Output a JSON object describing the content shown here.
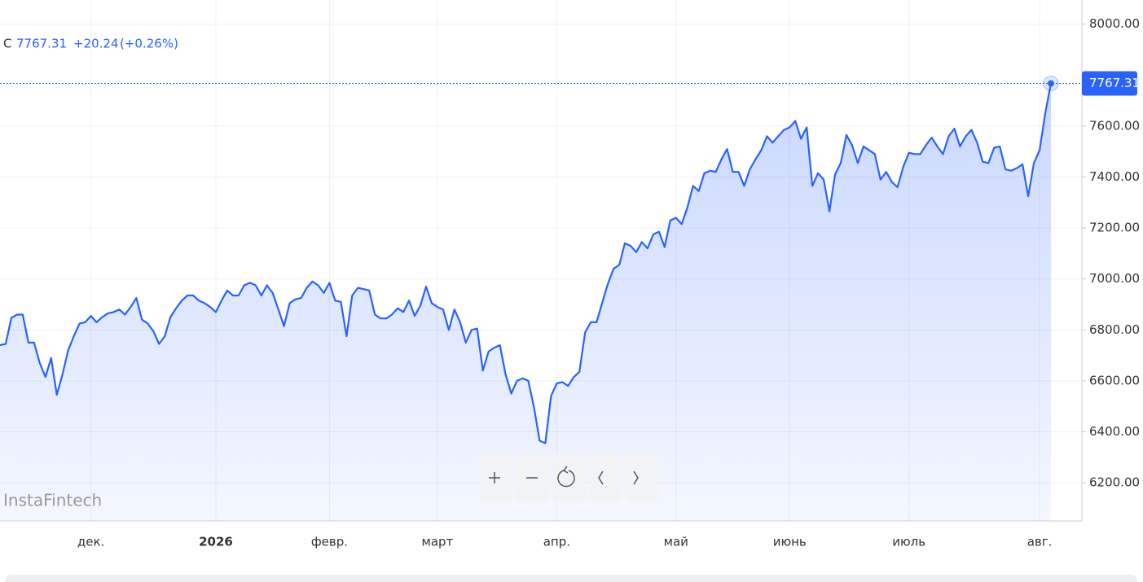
{
  "chart_data": {
    "type": "area",
    "header": {
      "symbol": "C",
      "change": "+20.24",
      "change_pct": "(+0.26%)"
    },
    "watermark": "InstaFintech",
    "color": "#2962ff",
    "categories": [
      null,
      null,
      null,
      null,
      null,
      null,
      null,
      null,
      null,
      null,
      null,
      null,
      null,
      null,
      null,
      null,
      "дек.",
      null,
      null,
      null,
      null,
      null,
      null,
      null,
      null,
      null,
      null,
      null,
      null,
      null,
      null,
      null,
      null,
      null,
      null,
      null,
      null,
      null,
      "2026",
      null,
      null,
      null,
      null,
      null,
      null,
      null,
      null,
      null,
      null,
      null,
      null,
      null,
      null,
      null,
      null,
      null,
      null,
      null,
      "февр.",
      null,
      null,
      null,
      null,
      null,
      null,
      null,
      null,
      null,
      null,
      null,
      null,
      null,
      null,
      null,
      null,
      null,
      null,
      "март",
      null,
      null,
      null,
      null,
      null,
      null,
      null,
      null,
      null,
      null,
      null,
      null,
      null,
      null,
      null,
      null,
      null,
      null,
      null,
      null,
      "апр.",
      null,
      null,
      null,
      null,
      null,
      null,
      null,
      null,
      null,
      null,
      null,
      null,
      null,
      null,
      null,
      null,
      null,
      null,
      null,
      null,
      "май",
      null,
      null,
      null,
      null,
      null,
      null,
      null,
      null,
      null,
      null,
      null,
      null,
      null,
      null,
      null,
      null,
      null,
      null,
      null,
      "июнь",
      null,
      null,
      null,
      null,
      null,
      null,
      null,
      null,
      null,
      null,
      null,
      null,
      null,
      null,
      null,
      null,
      null,
      null,
      null,
      null,
      "июль",
      null,
      null,
      null,
      null,
      null,
      null,
      null,
      null,
      null,
      null,
      null,
      null,
      null,
      null,
      null,
      null,
      null,
      null,
      null,
      null,
      null,
      null,
      "авг.",
      null,
      null
    ],
    "values": [
      6740,
      6745,
      6847,
      6860,
      6860,
      6750,
      6750,
      6670,
      6615,
      6690,
      6545,
      6625,
      6720,
      6775,
      6825,
      6830,
      6855,
      6830,
      6850,
      6865,
      6870,
      6880,
      6860,
      6890,
      6925,
      6840,
      6825,
      6795,
      6745,
      6775,
      6850,
      6885,
      6915,
      6935,
      6935,
      6915,
      6905,
      6890,
      6870,
      6915,
      6955,
      6935,
      6935,
      6975,
      6985,
      6975,
      6935,
      6975,
      6945,
      6880,
      6815,
      6905,
      6920,
      6925,
      6965,
      6990,
      6975,
      6945,
      6985,
      6915,
      6910,
      6775,
      6935,
      6965,
      6960,
      6955,
      6860,
      6845,
      6845,
      6860,
      6885,
      6870,
      6915,
      6855,
      6895,
      6970,
      6905,
      6890,
      6880,
      6800,
      6880,
      6830,
      6750,
      6800,
      6805,
      6640,
      6715,
      6730,
      6740,
      6625,
      6550,
      6600,
      6610,
      6600,
      6495,
      6365,
      6355,
      6540,
      6590,
      6595,
      6580,
      6615,
      6635,
      6790,
      6830,
      6830,
      6905,
      6980,
      7040,
      7055,
      7140,
      7130,
      7105,
      7145,
      7120,
      7175,
      7185,
      7125,
      7230,
      7240,
      7215,
      7280,
      7365,
      7345,
      7415,
      7425,
      7420,
      7470,
      7510,
      7420,
      7420,
      7365,
      7430,
      7470,
      7505,
      7560,
      7535,
      7560,
      7585,
      7595,
      7620,
      7550,
      7595,
      7365,
      7415,
      7390,
      7265,
      7410,
      7455,
      7565,
      7525,
      7455,
      7520,
      7505,
      7490,
      7390,
      7420,
      7380,
      7360,
      7440,
      7495,
      7490,
      7490,
      7525,
      7555,
      7520,
      7490,
      7560,
      7590,
      7520,
      7560,
      7585,
      7535,
      7460,
      7455,
      7515,
      7520,
      7430,
      7425,
      7435,
      7450,
      7325,
      7455,
      7505,
      7650,
      7767.31
    ],
    "ylim": [
      6050,
      8015
    ],
    "yticks": [
      {
        "value": 6200,
        "label": "6200.00"
      },
      {
        "value": 6400,
        "label": "6400.00"
      },
      {
        "value": 6600,
        "label": "6600.00"
      },
      {
        "value": 6800,
        "label": "6800.00"
      },
      {
        "value": 7000,
        "label": "7000.00"
      },
      {
        "value": 7200,
        "label": "7200.00"
      },
      {
        "value": 7400,
        "label": "7400.00"
      },
      {
        "value": 7600,
        "label": "7600.00"
      },
      {
        "value": 8000,
        "label": "8000.00"
      }
    ],
    "grid": true
  }
}
